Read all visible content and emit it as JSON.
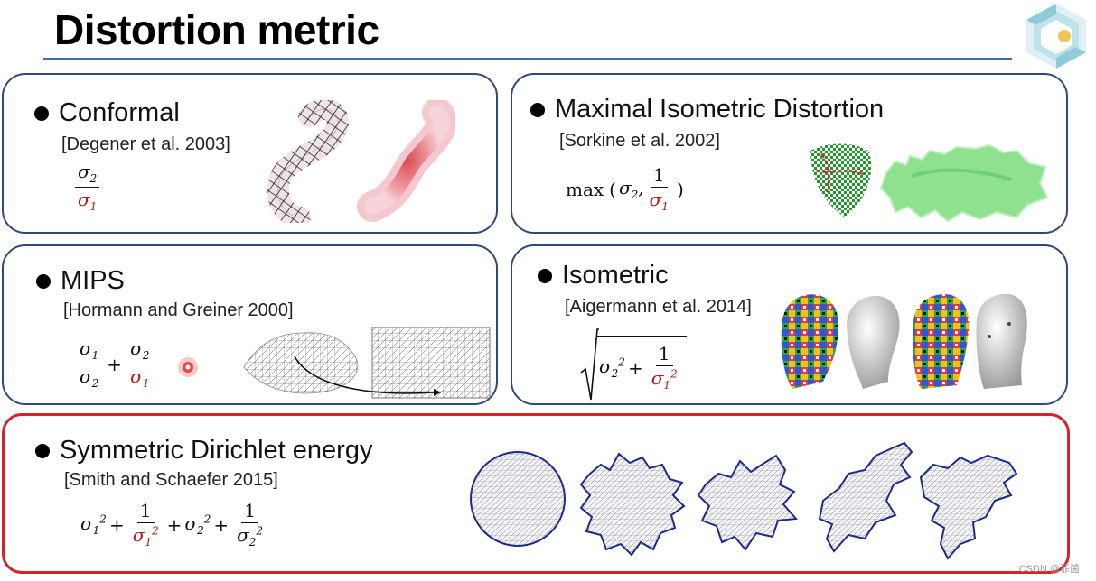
{
  "slide": {
    "title": "Distortion metric",
    "watermark": "CSDN @菲茵"
  },
  "panels": {
    "conformal": {
      "heading": "Conformal",
      "reference": "[Degener et al. 2003]"
    },
    "maximal_isometric": {
      "heading": "Maximal Isometric Distortion",
      "reference": "[Sorkine et al. 2002]",
      "formula_fn": "max"
    },
    "mips": {
      "heading": "MIPS",
      "reference": "[Hormann and Greiner 2000]"
    },
    "isometric": {
      "heading": "Isometric",
      "reference": "[Aigermann et al. 2014]"
    },
    "symmetric_dirichlet": {
      "heading": "Symmetric Dirichlet energy",
      "reference": "[Smith and Schaefer 2015]"
    }
  },
  "math": {
    "sigma1": "σ1",
    "sigma2": "σ2",
    "one": "1",
    "plus": "+"
  },
  "colors": {
    "panel_border": "#2f4a7a",
    "highlight_border": "#d8222a",
    "title_rule": "#3a6fb3",
    "denominator_red": "#b01a1a"
  }
}
